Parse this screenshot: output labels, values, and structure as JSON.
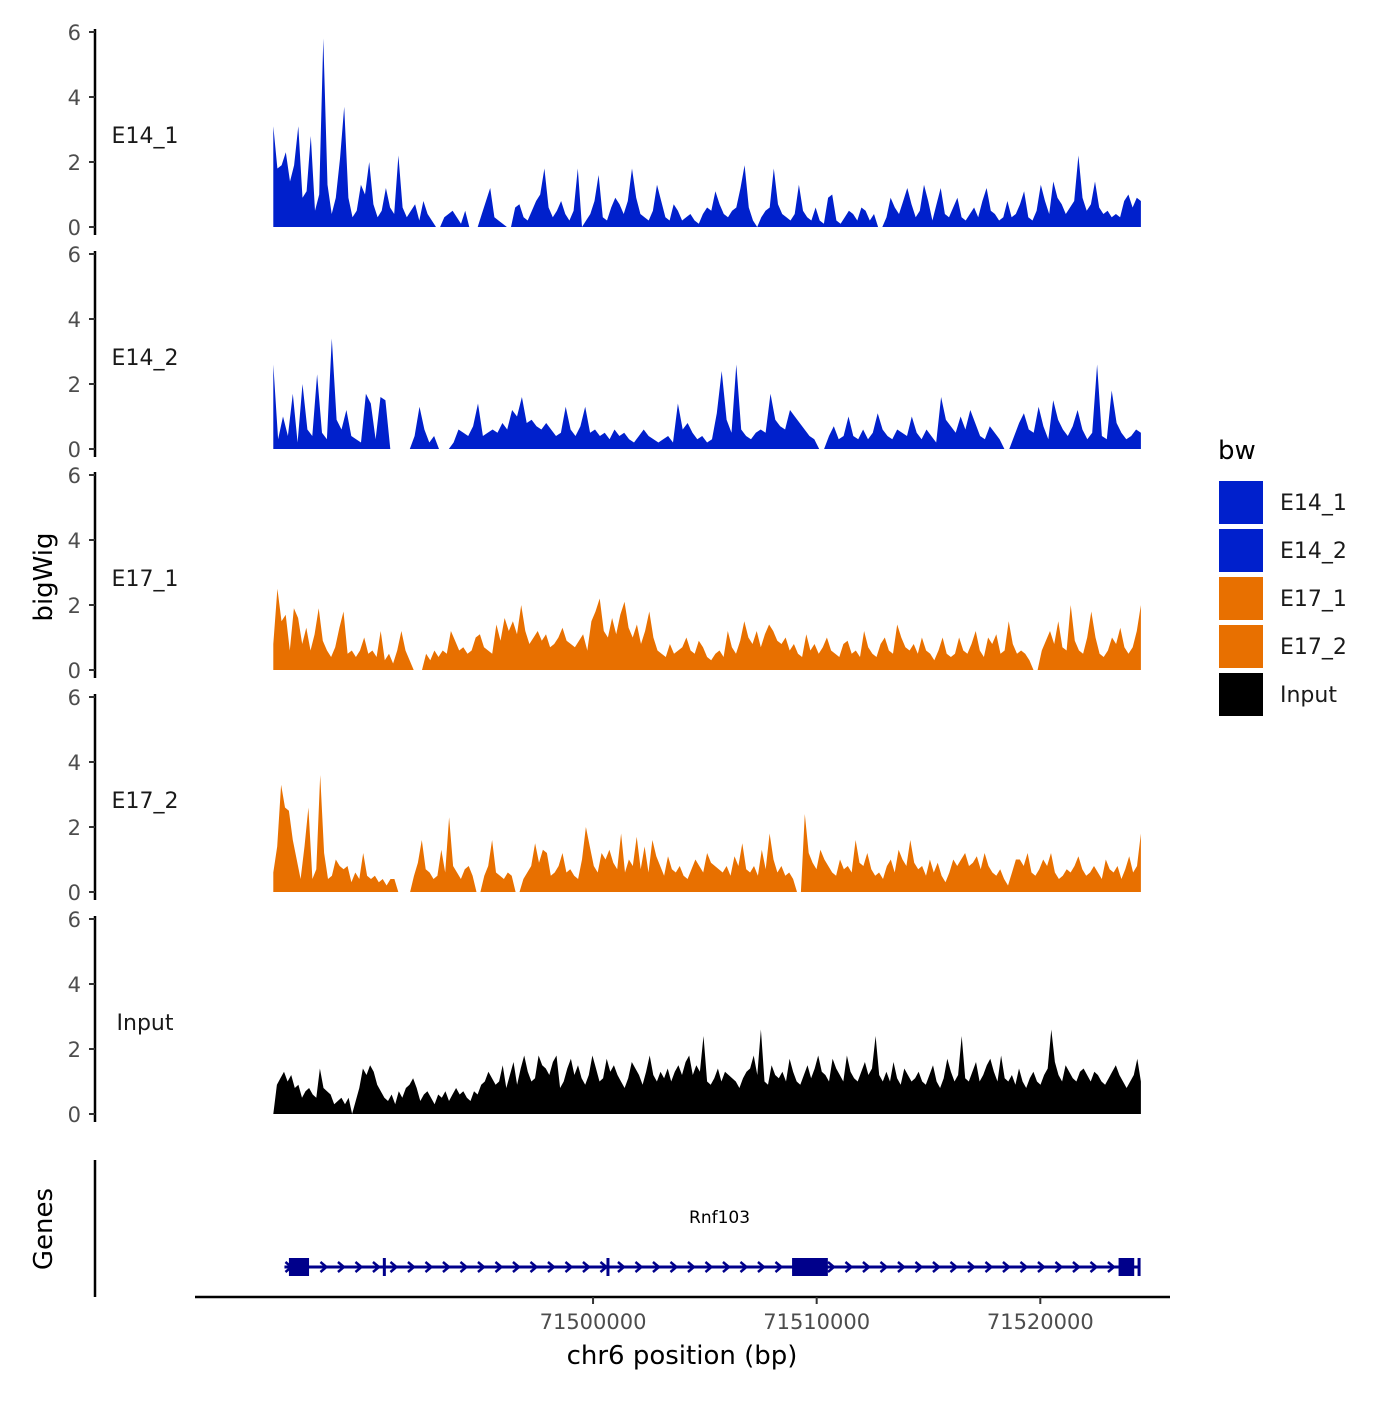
{
  "chart_data": {
    "type": "area",
    "title": "",
    "ylabel": "bigWig",
    "xlabel": "chr6 position (bp)",
    "xlim": [
      71482200,
      71525800
    ],
    "track_start": 71485700,
    "track_end": 71524500,
    "x_ticks": [
      {
        "value": 71500000,
        "label": "71500000"
      },
      {
        "value": 71510000,
        "label": "71510000"
      },
      {
        "value": 71520000,
        "label": "71520000"
      }
    ],
    "ylim": [
      0,
      6
    ],
    "y_ticks": [
      {
        "value": 0,
        "label": "0"
      },
      {
        "value": 2,
        "label": "2"
      },
      {
        "value": 4,
        "label": "4"
      },
      {
        "value": 6,
        "label": "6"
      }
    ],
    "legend": {
      "title": "bw",
      "position": "right",
      "entries": [
        {
          "label": "E14_1",
          "color": "#0020CC"
        },
        {
          "label": "E14_2",
          "color": "#0020CC"
        },
        {
          "label": "E17_1",
          "color": "#E87000"
        },
        {
          "label": "E17_2",
          "color": "#E87000"
        },
        {
          "label": "Input",
          "color": "#000000"
        }
      ]
    },
    "series": [
      {
        "name": "E14_1",
        "color": "#0020CC",
        "values": [
          3.1,
          1.8,
          1.9,
          2.3,
          1.4,
          1.9,
          3.1,
          0.9,
          1.1,
          2.8,
          0.5,
          1.0,
          5.8,
          1.3,
          0.4,
          0.9,
          2.1,
          3.7,
          0.9,
          0.3,
          0.5,
          1.3,
          1.0,
          2.0,
          0.7,
          0.3,
          0.5,
          1.2,
          0.6,
          0.4,
          2.2,
          0.6,
          0.3,
          0.5,
          0.7,
          0.2,
          0.8,
          0.4,
          0.2,
          0,
          0,
          0.3,
          0.4,
          0.5,
          0.3,
          0.1,
          0.5,
          0,
          0,
          0,
          0.4,
          0.8,
          1.2,
          0.3,
          0.2,
          0.1,
          0,
          0,
          0.6,
          0.7,
          0.3,
          0.2,
          0.5,
          0.8,
          1.0,
          1.8,
          0.6,
          0.3,
          0.5,
          0.8,
          0.4,
          0.2,
          0.5,
          1.8,
          0,
          0.2,
          0.4,
          0.8,
          1.6,
          0.3,
          0.2,
          0.6,
          0.9,
          0.7,
          0.4,
          0.8,
          1.8,
          0.9,
          0.4,
          0.3,
          0.2,
          0.5,
          1.3,
          0.8,
          0.3,
          0.2,
          0.7,
          0.5,
          0.2,
          0.3,
          0.4,
          0.2,
          0.1,
          0.4,
          0.6,
          0.5,
          1.1,
          0.7,
          0.4,
          0.3,
          0.5,
          0.6,
          1.2,
          1.9,
          0.6,
          0.2,
          0,
          0.3,
          0.5,
          0.6,
          1.8,
          0.7,
          0.4,
          0.3,
          0.2,
          0.4,
          1.3,
          0.5,
          0.3,
          0.2,
          0.6,
          0.2,
          0.1,
          0.9,
          1.0,
          0.2,
          0.1,
          0.3,
          0.5,
          0.4,
          0.2,
          0.6,
          0.5,
          0.2,
          0.4,
          0,
          0,
          0.3,
          0.9,
          0.6,
          0.4,
          0.8,
          1.2,
          0.7,
          0.3,
          0.5,
          1.3,
          0.8,
          0.2,
          0.7,
          1.2,
          0.4,
          0.3,
          0.6,
          0.9,
          0.3,
          0.2,
          0.4,
          0.6,
          0.3,
          0.8,
          1.2,
          0.5,
          0.4,
          0.2,
          0.3,
          0.8,
          0.3,
          0.4,
          0.7,
          1.1,
          0.3,
          0.2,
          0.5,
          1.3,
          0.8,
          0.4,
          1.4,
          0.9,
          0.7,
          0.4,
          0.6,
          0.8,
          2.2,
          0.9,
          0.5,
          0.7,
          1.4,
          0.6,
          0.4,
          0.5,
          0.3,
          0.4,
          0.3,
          0.8,
          1.0,
          0.6,
          0.9,
          0.8
        ]
      },
      {
        "name": "E14_2",
        "color": "#0020CC",
        "values": [
          2.6,
          0.3,
          1.0,
          0.4,
          1.7,
          0.2,
          2.0,
          0.6,
          0.4,
          2.3,
          0.5,
          0.3,
          3.4,
          0.9,
          0.6,
          1.2,
          0.4,
          0.3,
          0.2,
          1.7,
          1.4,
          0.3,
          1.6,
          1.5,
          0,
          0,
          0,
          0,
          0,
          0.4,
          1.3,
          0.6,
          0.2,
          0.4,
          0,
          0,
          0,
          0.2,
          0.6,
          0.5,
          0.4,
          0.7,
          1.4,
          0.4,
          0.5,
          0.6,
          0.5,
          0.8,
          0.6,
          1.2,
          1.0,
          1.6,
          0.8,
          0.9,
          0.7,
          0.6,
          0.8,
          0.6,
          0.4,
          0.5,
          1.3,
          0.6,
          0.4,
          0.7,
          1.3,
          0.5,
          0.6,
          0.4,
          0.5,
          0.3,
          0.6,
          0.4,
          0.5,
          0.3,
          0.2,
          0.4,
          0.6,
          0.4,
          0.3,
          0.2,
          0.3,
          0.4,
          0.2,
          1.4,
          0.6,
          0.8,
          0.5,
          0.3,
          0.4,
          0.2,
          0.3,
          1.1,
          2.4,
          0.9,
          0.5,
          2.6,
          0.6,
          0.4,
          0.3,
          0.5,
          0.6,
          0.5,
          1.7,
          0.9,
          0.7,
          0.6,
          1.2,
          1.0,
          0.8,
          0.6,
          0.4,
          0.3,
          0,
          0,
          0.4,
          0.7,
          0.3,
          0.4,
          1.0,
          0.4,
          0.3,
          0.6,
          0.3,
          0.5,
          1.1,
          0.6,
          0.4,
          0.3,
          0.6,
          0.5,
          0.4,
          1.0,
          0.5,
          0.3,
          0.6,
          0.4,
          0.2,
          1.6,
          0.9,
          0.7,
          0.5,
          1.0,
          0.6,
          1.2,
          0.8,
          0.4,
          0.3,
          0.7,
          0.5,
          0.3,
          0,
          0,
          0.4,
          0.8,
          1.1,
          0.6,
          0.5,
          1.3,
          0.7,
          0.3,
          1.5,
          0.9,
          0.6,
          0.4,
          0.7,
          1.2,
          0.6,
          0.3,
          0.5,
          2.6,
          0.4,
          0.3,
          1.8,
          0.8,
          0.5,
          0.3,
          0.4,
          0.6,
          0.5
        ]
      },
      {
        "name": "E17_1",
        "color": "#E87000",
        "values": [
          0.8,
          2.5,
          1.5,
          1.7,
          0.6,
          1.9,
          1.6,
          0.8,
          1.3,
          0.6,
          1.1,
          1.9,
          0.9,
          0.6,
          0.4,
          0.7,
          1.3,
          1.8,
          0.5,
          0.6,
          0.4,
          0.6,
          1.0,
          0.5,
          0.6,
          0.4,
          1.2,
          0.3,
          0.5,
          0.2,
          0.6,
          1.2,
          0.6,
          0.3,
          0,
          0,
          0,
          0.5,
          0.3,
          0.6,
          0.4,
          0.6,
          0.5,
          1.2,
          0.9,
          0.6,
          0.7,
          0.5,
          0.6,
          1.0,
          1.1,
          0.7,
          0.6,
          0.5,
          1.4,
          0.9,
          1.6,
          1.2,
          1.5,
          1.1,
          2.0,
          1.2,
          0.8,
          1.0,
          1.2,
          0.9,
          1.1,
          0.7,
          0.8,
          1.0,
          1.3,
          0.9,
          0.8,
          0.7,
          0.9,
          1.1,
          0.6,
          1.5,
          1.8,
          2.2,
          1.2,
          1.0,
          1.6,
          1.1,
          1.7,
          2.1,
          1.3,
          1.0,
          1.4,
          0.8,
          1.2,
          1.8,
          1.0,
          0.6,
          0.5,
          0.4,
          0.8,
          0.5,
          0.6,
          0.7,
          1.0,
          0.6,
          0.5,
          0.9,
          0.7,
          0.4,
          0.3,
          0.5,
          0.6,
          0.4,
          1.2,
          0.7,
          0.5,
          0.9,
          1.5,
          1.0,
          0.8,
          1.2,
          0.7,
          1.1,
          1.4,
          1.2,
          0.9,
          0.8,
          1.0,
          0.6,
          0.8,
          0.5,
          0.4,
          1.1,
          0.6,
          0.8,
          0.5,
          0.7,
          1.0,
          0.6,
          0.5,
          0.4,
          0.8,
          0.9,
          0.5,
          0.6,
          0.4,
          1.2,
          0.7,
          0.5,
          0.4,
          0.8,
          1.0,
          0.6,
          0.5,
          1.4,
          1.0,
          0.7,
          0.6,
          0.8,
          0.5,
          1.0,
          0.6,
          0.5,
          0.3,
          0.6,
          1.0,
          0.5,
          0.4,
          0.5,
          1.0,
          0.6,
          0.5,
          0.8,
          1.2,
          0.6,
          0.4,
          1.0,
          0.8,
          1.1,
          0.5,
          0.6,
          1.5,
          0.8,
          0.5,
          0.6,
          0.5,
          0.3,
          0,
          0,
          0.6,
          0.9,
          1.2,
          0.8,
          1.5,
          0.7,
          0.6,
          2.0,
          0.9,
          0.6,
          0.5,
          1.0,
          1.8,
          1.0,
          0.5,
          0.4,
          0.6,
          1.0,
          0.8,
          1.3,
          0.7,
          0.5,
          0.7,
          1.2,
          2.0
        ]
      },
      {
        "name": "E17_2",
        "color": "#E87000",
        "values": [
          0.6,
          1.4,
          3.3,
          2.6,
          2.5,
          1.6,
          1.0,
          0.4,
          1.4,
          2.6,
          0.4,
          0.7,
          3.6,
          1.2,
          0.4,
          0.5,
          1.0,
          0.8,
          0.7,
          0.8,
          0.3,
          0.6,
          0.4,
          1.2,
          0.5,
          0.4,
          0.5,
          0.3,
          0.4,
          0.2,
          0.4,
          0.4,
          0,
          0,
          0,
          0,
          0.5,
          0.9,
          1.6,
          0.7,
          0.6,
          0.4,
          0.5,
          1.3,
          0.6,
          2.3,
          0.8,
          0.6,
          0.4,
          0.7,
          0.8,
          0.5,
          0,
          0,
          0.5,
          0.8,
          1.6,
          0.6,
          0.5,
          0.4,
          0.6,
          0.5,
          0,
          0,
          0.4,
          0.6,
          0.8,
          1.5,
          0.9,
          1.3,
          1.2,
          0.5,
          0.6,
          0.8,
          1.2,
          0.6,
          0.7,
          0.5,
          0.4,
          1.0,
          2.0,
          1.4,
          0.8,
          0.6,
          1.2,
          1.0,
          1.3,
          0.9,
          0.7,
          1.8,
          0.6,
          1.0,
          0.8,
          1.7,
          0.7,
          1.4,
          0.6,
          1.6,
          1.1,
          0.8,
          0.5,
          1.1,
          0.7,
          0.6,
          0.8,
          0.5,
          0.4,
          0.7,
          1.0,
          0.8,
          0.6,
          1.2,
          0.9,
          0.8,
          0.7,
          0.6,
          0.8,
          0.5,
          1.1,
          0.8,
          1.5,
          0.7,
          0.6,
          0.8,
          0.5,
          1.3,
          0.7,
          1.8,
          1.0,
          0.6,
          0.8,
          0.5,
          0.6,
          0.4,
          0,
          0,
          2.4,
          1.2,
          0.9,
          0.7,
          1.3,
          1.0,
          0.8,
          0.6,
          0.5,
          1.0,
          0.7,
          0.8,
          0.6,
          1.6,
          0.9,
          0.8,
          1.2,
          0.7,
          0.5,
          0.6,
          0.4,
          0.8,
          1.0,
          0.6,
          1.3,
          1.0,
          0.8,
          1.6,
          0.9,
          0.7,
          0.8,
          0.5,
          1.0,
          0.6,
          0.9,
          0.5,
          0.3,
          0.6,
          1.0,
          0.8,
          1.0,
          1.2,
          0.8,
          0.9,
          1.1,
          0.7,
          1.2,
          0.8,
          0.6,
          0.5,
          0.7,
          0.4,
          0.2,
          0.6,
          1.0,
          1.0,
          0.8,
          1.2,
          0.6,
          0.5,
          0.7,
          1.0,
          0.8,
          1.2,
          0.6,
          0.4,
          0.5,
          0.7,
          0.6,
          0.8,
          1.1,
          0.7,
          0.5,
          0.6,
          0.8,
          0.6,
          0.4,
          1.0,
          0.7,
          0.6,
          0.8,
          0.4,
          0.7,
          1.1,
          0.6,
          0.8,
          1.8
        ]
      },
      {
        "name": "Input",
        "color": "#000000",
        "values": [
          0,
          0.9,
          1.1,
          1.3,
          1.0,
          1.2,
          0.8,
          0.9,
          0.5,
          0.7,
          0.8,
          0.6,
          0.5,
          1.4,
          0.8,
          0.7,
          0.6,
          0.3,
          0.4,
          0.5,
          0.3,
          0.5,
          0,
          0.4,
          0.8,
          1.4,
          1.2,
          1.5,
          1.3,
          0.9,
          0.7,
          0.5,
          0.4,
          0.6,
          0.3,
          0.7,
          0.5,
          0.8,
          0.9,
          1.1,
          0.8,
          0.4,
          0.6,
          0.7,
          0.5,
          0.3,
          0.6,
          0.5,
          0.7,
          0.4,
          0.6,
          0.8,
          0.6,
          0.7,
          0.5,
          0.4,
          0.7,
          0.6,
          0.9,
          1.0,
          1.3,
          1.1,
          0.9,
          1.0,
          1.5,
          0.8,
          1.2,
          1.6,
          0.9,
          1.4,
          1.8,
          1.3,
          1.0,
          1.1,
          1.8,
          1.5,
          1.4,
          1.2,
          1.6,
          1.8,
          0.8,
          1.0,
          1.4,
          1.7,
          1.2,
          1.5,
          1.1,
          0.9,
          1.2,
          1.8,
          1.4,
          1.0,
          1.1,
          1.7,
          1.3,
          1.5,
          1.2,
          1.0,
          0.8,
          1.1,
          1.6,
          1.4,
          1.2,
          0.9,
          1.3,
          1.8,
          1.2,
          1.0,
          1.3,
          1.1,
          1.4,
          1.0,
          1.3,
          1.5,
          1.2,
          1.6,
          1.8,
          1.2,
          1.5,
          1.3,
          2.4,
          1.0,
          0.9,
          1.1,
          1.4,
          1.0,
          1.3,
          1.2,
          1.1,
          1.0,
          0.8,
          1.1,
          1.3,
          1.4,
          1.8,
          1.2,
          2.6,
          1.0,
          0.9,
          1.5,
          1.2,
          1.1,
          1.3,
          1.0,
          1.7,
          1.3,
          1.0,
          0.9,
          1.2,
          1.5,
          1.1,
          1.4,
          1.8,
          1.3,
          1.2,
          1.0,
          1.7,
          1.4,
          1.2,
          1.0,
          1.8,
          1.3,
          1.1,
          1.0,
          1.3,
          1.6,
          1.2,
          1.4,
          2.4,
          1.2,
          1.0,
          1.3,
          1.0,
          1.6,
          1.1,
          0.9,
          1.4,
          1.2,
          1.0,
          1.1,
          1.3,
          1.0,
          0.9,
          1.2,
          1.5,
          1.0,
          0.8,
          1.1,
          1.7,
          1.3,
          1.0,
          1.2,
          2.4,
          1.1,
          1.0,
          1.3,
          1.6,
          1.0,
          1.2,
          1.5,
          1.7,
          1.3,
          1.0,
          1.8,
          1.1,
          1.0,
          1.2,
          0.9,
          1.4,
          1.0,
          0.8,
          1.1,
          1.3,
          1.0,
          0.9,
          1.2,
          1.4,
          2.6,
          1.6,
          1.2,
          1.0,
          1.5,
          1.3,
          1.1,
          1.0,
          1.3,
          1.4,
          1.2,
          1.0,
          1.3,
          1.2,
          1.0,
          0.9,
          1.1,
          1.3,
          1.5,
          1.2,
          1.0,
          0.8,
          1.0,
          1.2,
          1.7,
          1.0
        ]
      }
    ],
    "genes_track": {
      "label": "Genes",
      "gene": {
        "name": "Rnf103",
        "color": "#00008B",
        "strand": "+",
        "start": 71486200,
        "end": 71524400,
        "exons": [
          {
            "start": 71486400,
            "end": 71487300
          },
          {
            "start": 71490600,
            "end": 71490700
          },
          {
            "start": 71500600,
            "end": 71500700
          },
          {
            "start": 71508900,
            "end": 71510500
          },
          {
            "start": 71523500,
            "end": 71524200
          },
          {
            "start": 71524350,
            "end": 71524450
          }
        ]
      }
    }
  }
}
